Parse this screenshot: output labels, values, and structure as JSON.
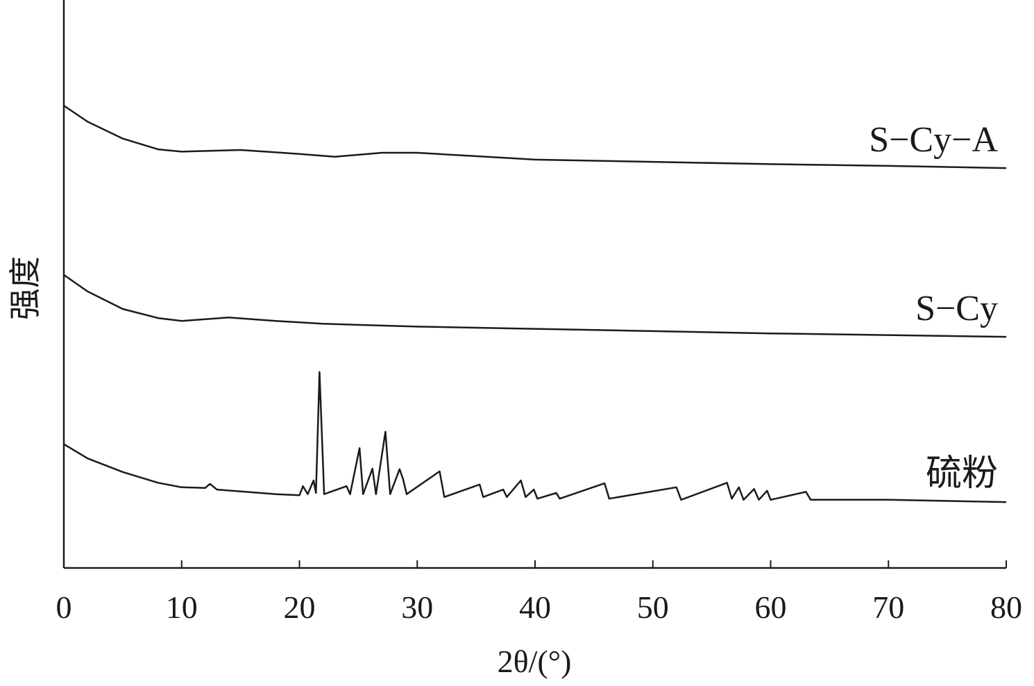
{
  "chart_data": {
    "type": "line",
    "x_label": "2θ/(°)",
    "y_label": "强度",
    "xlim": [
      0,
      80
    ],
    "xticks": [
      0,
      10,
      20,
      30,
      40,
      50,
      60,
      70,
      80
    ],
    "ylim": [
      0,
      100
    ],
    "color": "#1a1a1a",
    "series": [
      {
        "name": "S−Cy−A",
        "color": "#1a1a1a",
        "x": [
          0,
          2,
          5,
          8,
          10,
          15,
          20,
          23,
          27,
          30,
          40,
          50,
          60,
          70,
          80
        ],
        "values": [
          81.4,
          78.6,
          75.6,
          73.7,
          73.3,
          73.6,
          72.9,
          72.4,
          73.1,
          73.1,
          71.9,
          71.5,
          71.1,
          70.8,
          70.4
        ]
      },
      {
        "name": "S−Cy",
        "color": "#1a1a1a",
        "x": [
          0,
          2,
          5,
          8,
          10,
          14,
          18,
          22,
          30,
          40,
          50,
          60,
          70,
          80
        ],
        "values": [
          51.6,
          48.7,
          45.6,
          44.0,
          43.5,
          44.1,
          43.5,
          43.0,
          42.5,
          42.1,
          41.7,
          41.3,
          41.0,
          40.7
        ]
      },
      {
        "name": "硫粉",
        "color": "#1a1a1a",
        "x": [
          0,
          2,
          5,
          8,
          10,
          12,
          12.4,
          13,
          18,
          20,
          20.3,
          20.7,
          21.2,
          21.4,
          21.7,
          22.1,
          24,
          24.3,
          25.1,
          25.4,
          26.2,
          26.5,
          27.3,
          27.7,
          28.5,
          28.8,
          29.1,
          31.9,
          32.3,
          35.3,
          35.6,
          37.3,
          37.6,
          38.8,
          39.2,
          39.9,
          40.2,
          41.8,
          42.1,
          45.9,
          46.3,
          52,
          52.4,
          56.3,
          56.7,
          57.3,
          57.7,
          58.6,
          59,
          59.7,
          60,
          63,
          63.4,
          70,
          80
        ],
        "values": [
          21.8,
          19.3,
          16.9,
          15.0,
          14.2,
          14.1,
          14.8,
          13.8,
          13.0,
          12.8,
          14.4,
          13.0,
          15.4,
          13.2,
          34.5,
          13.0,
          14.4,
          13.0,
          21.1,
          13.0,
          17.5,
          13.0,
          24.0,
          13.0,
          17.4,
          15.6,
          13.0,
          17.0,
          12.5,
          14.7,
          12.5,
          13.8,
          12.5,
          15.4,
          12.5,
          13.8,
          12.2,
          13.2,
          12.2,
          14.9,
          12.2,
          14.2,
          12.0,
          15.0,
          12.2,
          14.2,
          12.0,
          13.9,
          12.0,
          13.6,
          12.0,
          13.4,
          12.0,
          12.0,
          11.6
        ]
      }
    ]
  }
}
